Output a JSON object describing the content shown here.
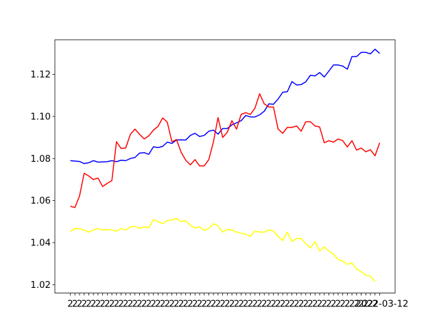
{
  "chart_data": {
    "type": "line",
    "title": "",
    "xlabel": "",
    "ylabel": "",
    "ylim": [
      1.016,
      1.1365
    ],
    "yticks": [
      1.02,
      1.04,
      1.06,
      1.08,
      1.1,
      1.12
    ],
    "ytick_labels": [
      "1.02",
      "1.04",
      "1.06",
      "1.08",
      "1.10",
      "1.12"
    ],
    "grid": false,
    "legend": "none",
    "x_tick_label_prefix": "2",
    "x_last_tick_label": "2022-03-12",
    "series": [
      {
        "name": "blue",
        "color": "#0000ff",
        "values": [
          1.079,
          1.0788,
          1.0786,
          1.0776,
          1.078,
          1.079,
          1.0783,
          1.0784,
          1.0785,
          1.079,
          1.0785,
          1.0792,
          1.079,
          1.08,
          1.0805,
          1.0826,
          1.0828,
          1.082,
          1.0856,
          1.0852,
          1.0858,
          1.0878,
          1.0872,
          1.0888,
          1.0889,
          1.0888,
          1.091,
          1.092,
          1.0905,
          1.091,
          1.093,
          1.0935,
          1.0916,
          1.0943,
          1.0943,
          1.096,
          1.097,
          1.098,
          1.1005,
          1.0998,
          1.0998,
          1.1008,
          1.1025,
          1.106,
          1.1058,
          1.1083,
          1.1115,
          1.1118,
          1.1166,
          1.115,
          1.1152,
          1.1165,
          1.1196,
          1.1193,
          1.1209,
          1.1188,
          1.1216,
          1.1245,
          1.1245,
          1.124,
          1.1225,
          1.1285,
          1.1285,
          1.1305,
          1.1305,
          1.1298,
          1.132,
          1.13
        ]
      },
      {
        "name": "red",
        "color": "#ff0000",
        "values": [
          1.0573,
          1.0567,
          1.0622,
          1.073,
          1.0717,
          1.07,
          1.0707,
          1.0667,
          1.0682,
          1.0695,
          1.088,
          1.0848,
          1.085,
          1.0915,
          1.094,
          1.0915,
          1.0893,
          1.0908,
          1.0935,
          1.0953,
          1.0993,
          1.0973,
          1.088,
          1.089,
          1.083,
          1.0792,
          1.077,
          1.0795,
          1.0765,
          1.0765,
          1.0795,
          1.088,
          1.0995,
          1.09,
          1.0925,
          1.098,
          1.094,
          1.101,
          1.1018,
          1.101,
          1.104,
          1.1108,
          1.106,
          1.1045,
          1.1045,
          1.094,
          1.092,
          1.0948,
          1.0948,
          1.0955,
          1.093,
          1.0975,
          1.0975,
          1.0955,
          1.095,
          1.0875,
          1.0885,
          1.0878,
          1.0893,
          1.0885,
          1.0855,
          1.0885,
          1.084,
          1.085,
          1.0832,
          1.0842,
          1.0813,
          1.0875
        ]
      },
      {
        "name": "yellow",
        "color": "#ffff00",
        "values": [
          1.0453,
          1.0467,
          1.0466,
          1.046,
          1.045,
          1.046,
          1.0467,
          1.046,
          1.0462,
          1.046,
          1.0455,
          1.0467,
          1.046,
          1.0475,
          1.0478,
          1.0468,
          1.0475,
          1.047,
          1.051,
          1.05,
          1.049,
          1.0505,
          1.0508,
          1.0515,
          1.05,
          1.0504,
          1.0482,
          1.047,
          1.0475,
          1.0458,
          1.0468,
          1.049,
          1.048,
          1.045,
          1.0463,
          1.046,
          1.045,
          1.0445,
          1.044,
          1.043,
          1.0455,
          1.045,
          1.045,
          1.046,
          1.0455,
          1.043,
          1.041,
          1.045,
          1.0405,
          1.042,
          1.042,
          1.0395,
          1.0375,
          1.0405,
          1.036,
          1.038,
          1.036,
          1.0345,
          1.032,
          1.0312,
          1.0297,
          1.0303,
          1.0275,
          1.0262,
          1.0245,
          1.024,
          1.0215
        ]
      }
    ]
  }
}
